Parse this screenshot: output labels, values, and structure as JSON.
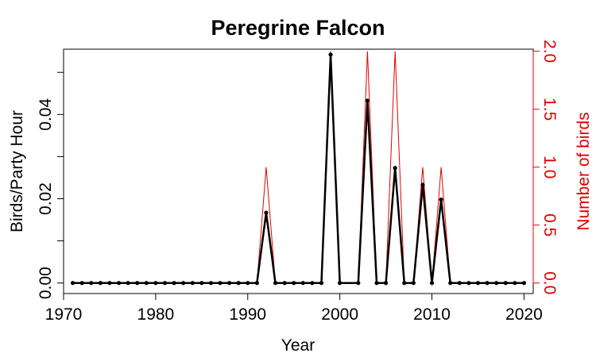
{
  "chart_data": {
    "type": "line",
    "title": "Peregrine Falcon",
    "xlabel": "Year",
    "ylabel_left": "Birds/Party Hour",
    "ylabel_right": "Number of birds",
    "xlim": [
      1970,
      2021
    ],
    "ylim_left": [
      -0.0025,
      0.0555
    ],
    "ylim_right": [
      -0.0909,
      2.018
    ],
    "x_ticks": [
      1970,
      1980,
      1990,
      2000,
      2010,
      2020
    ],
    "y_ticks_left": [
      "0.00",
      "0.02",
      "0.04"
    ],
    "y_ticks_right": [
      "0.0",
      "0.5",
      "1.0",
      "1.5",
      "2.0"
    ],
    "grid": false,
    "colors": {
      "rate": "#000000",
      "count": "#e00000"
    },
    "x": [
      1971,
      1972,
      1973,
      1974,
      1975,
      1976,
      1977,
      1978,
      1979,
      1980,
      1981,
      1982,
      1983,
      1984,
      1985,
      1986,
      1987,
      1988,
      1989,
      1990,
      1991,
      1992,
      1993,
      1994,
      1995,
      1996,
      1997,
      1998,
      1999,
      2000,
      2002,
      2003,
      2004,
      2005,
      2006,
      2007,
      2008,
      2009,
      2010,
      2011,
      2012,
      2013,
      2014,
      2015,
      2016,
      2017,
      2018,
      2019,
      2020
    ],
    "series": [
      {
        "axis": "left",
        "values": [
          0,
          0,
          0,
          0,
          0,
          0,
          0,
          0,
          0,
          0,
          0,
          0,
          0,
          0,
          0,
          0,
          0,
          0,
          0,
          0,
          0,
          0.0167,
          0,
          0,
          0,
          0,
          0,
          0,
          0.0542,
          0,
          0,
          0.0433,
          0,
          0,
          0.0273,
          0,
          0,
          0.0233,
          0,
          0.0198,
          0,
          0,
          0,
          0,
          0,
          0,
          0,
          0,
          0
        ]
      },
      {
        "axis": "right",
        "values": [
          0,
          0,
          0,
          0,
          0,
          0,
          0,
          0,
          0,
          0,
          0,
          0,
          0,
          0,
          0,
          0,
          0,
          0,
          0,
          0,
          0,
          1,
          0,
          0,
          0,
          0,
          0,
          0,
          2,
          0,
          0,
          2,
          0,
          0,
          2,
          0,
          0,
          1,
          0,
          1,
          0,
          0,
          0,
          0,
          0,
          0,
          0,
          0,
          0
        ]
      }
    ]
  }
}
